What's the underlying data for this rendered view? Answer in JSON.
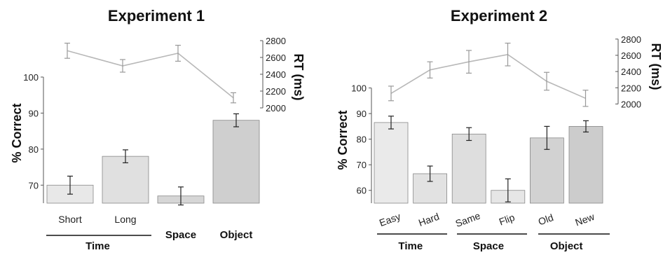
{
  "chart_data": [
    {
      "type": "bar",
      "title": "Experiment 1",
      "ylabel": "% Correct",
      "y2label": "RT (ms)",
      "ylim": [
        65,
        100
      ],
      "yticks": [
        70,
        80,
        90,
        100
      ],
      "y2lim": [
        1800,
        2800
      ],
      "y2ticks": [
        2000,
        2200,
        2400,
        2600,
        2800
      ],
      "categories": [
        "Short",
        "Long",
        "",
        ""
      ],
      "groups": [
        {
          "label": "Time",
          "categories": [
            0,
            1
          ]
        },
        {
          "label": "Space",
          "categories": [
            2
          ]
        },
        {
          "label": "Object",
          "categories": [
            3
          ]
        }
      ],
      "series": [
        {
          "values": [
            70,
            78,
            67,
            88
          ],
          "errors": [
            2.5,
            1.8,
            2.5,
            1.8
          ],
          "fills": [
            "#e8e8e8",
            "#e0e0e0",
            "#d6d6d6",
            "#cfcfcf"
          ]
        },
        {
          "values": [
            2680,
            2500,
            2650,
            2120
          ],
          "errors": [
            90,
            75,
            95,
            60
          ],
          "color": "#b8b8b8"
        }
      ]
    },
    {
      "type": "bar",
      "title": "Experiment 2",
      "ylabel": "% Correct",
      "y2label": "RT (ms)",
      "ylim": [
        55,
        107
      ],
      "yticks": [
        60,
        70,
        80,
        90,
        100
      ],
      "y2lim": [
        1900,
        2850
      ],
      "y2ticks": [
        2000,
        2200,
        2400,
        2600,
        2800
      ],
      "categories": [
        "Easy",
        "Hard",
        "Same",
        "Flip",
        "Old",
        "New"
      ],
      "groups": [
        {
          "label": "Time",
          "categories": [
            0,
            1
          ]
        },
        {
          "label": "Space",
          "categories": [
            2,
            3
          ]
        },
        {
          "label": "Object",
          "categories": [
            4,
            5
          ]
        }
      ],
      "series": [
        {
          "values": [
            86.5,
            66.5,
            82,
            60,
            80.5,
            85
          ],
          "errors": [
            2.5,
            3,
            2.5,
            4.5,
            4.5,
            2.2
          ],
          "fills": [
            "#eaeaea",
            "#e2e2e2",
            "#dedede",
            "#e6e6e6",
            "#d2d2d2",
            "#cccccc"
          ]
        },
        {
          "values": [
            2130,
            2420,
            2520,
            2610,
            2280,
            2070
          ],
          "errors": [
            90,
            100,
            140,
            140,
            110,
            100
          ],
          "color": "#b8b8b8"
        }
      ]
    }
  ]
}
